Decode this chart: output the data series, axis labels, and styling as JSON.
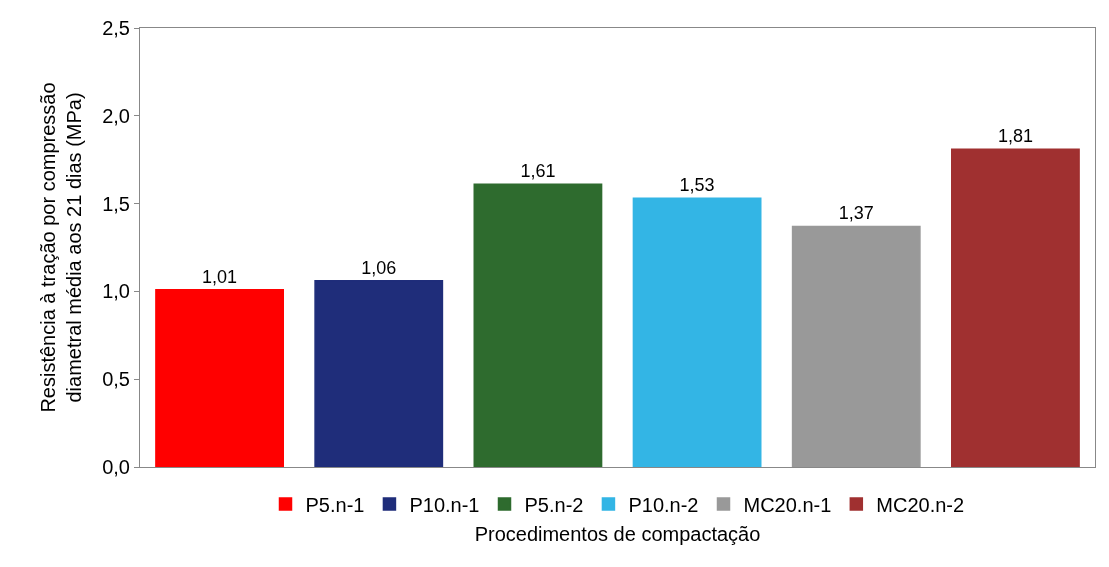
{
  "chart_data": {
    "type": "bar",
    "xlabel": "Procedimentos de compactação",
    "ylabel": "Resistência à tração por compressão diametral média aos 21 dias (MPa)",
    "categories": [
      null,
      null,
      null,
      null,
      null,
      null
    ],
    "series": [
      {
        "name": "P5.n-1",
        "color": "#ff0000",
        "values": [
          1.01,
          null,
          null,
          null,
          null,
          null
        ],
        "value_labels": [
          "1,01",
          null,
          null,
          null,
          null,
          null
        ]
      },
      {
        "name": "P10.n-1",
        "color": "#1f2d7a",
        "values": [
          null,
          1.06,
          null,
          null,
          null,
          null
        ],
        "value_labels": [
          null,
          "1,06",
          null,
          null,
          null,
          null
        ]
      },
      {
        "name": "P5.n-2",
        "color": "#2e6b2e",
        "values": [
          null,
          null,
          1.61,
          null,
          null,
          null
        ],
        "value_labels": [
          null,
          null,
          "1,61",
          null,
          null,
          null
        ]
      },
      {
        "name": "P10.n-2",
        "color": "#33b5e5",
        "values": [
          null,
          null,
          null,
          1.53,
          null,
          null
        ],
        "value_labels": [
          null,
          null,
          null,
          "1,53",
          null,
          null
        ]
      },
      {
        "name": "MC20.n-1",
        "color": "#999999",
        "values": [
          null,
          null,
          null,
          null,
          1.37,
          null
        ],
        "value_labels": [
          null,
          null,
          null,
          null,
          "1,37",
          null
        ]
      },
      {
        "name": "MC20.n-2",
        "color": "#a03030",
        "values": [
          null,
          null,
          null,
          null,
          null,
          1.81
        ],
        "value_labels": [
          null,
          null,
          null,
          null,
          null,
          "1,81"
        ]
      }
    ],
    "ylim": [
      0,
      2.5
    ],
    "yticks": [
      {
        "value": 0,
        "label": "0,0"
      },
      {
        "value": 0.5,
        "label": "0,5"
      },
      {
        "value": 1.0,
        "label": "1,0"
      },
      {
        "value": 1.5,
        "label": "1,5"
      },
      {
        "value": 2.0,
        "label": "2,0"
      },
      {
        "value": 2.5,
        "label": "2,5"
      }
    ],
    "grid": false,
    "legend": "bottom"
  }
}
